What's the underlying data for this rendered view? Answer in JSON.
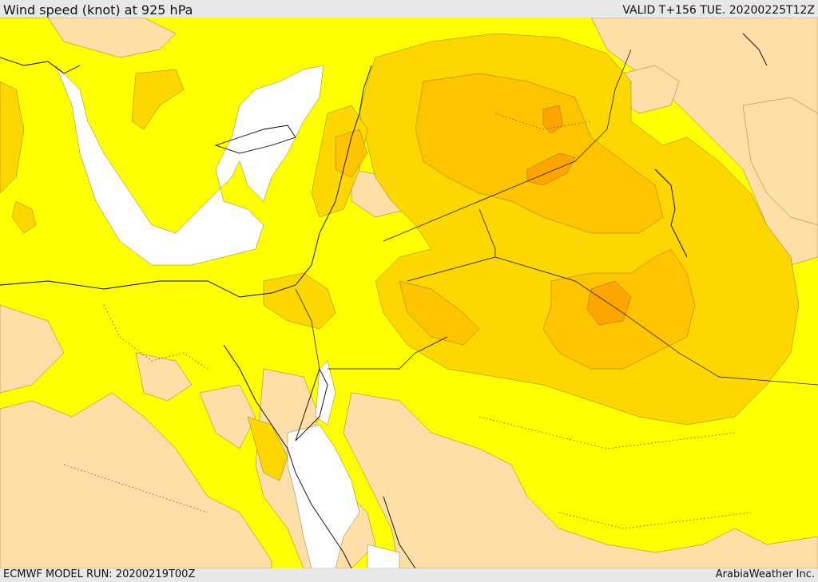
{
  "header": {
    "title": "Wind speed (knot) at 925 hPa",
    "valid": "VALID T+156 TUE. 20200225T12Z"
  },
  "footer": {
    "model_run": "ECMWF MODEL RUN: 20200219T00Z",
    "credit": "ArabiaWeather Inc."
  },
  "map": {
    "levels": [
      "white",
      "yellow",
      "tan",
      "gold",
      "light-orange",
      "orange"
    ],
    "colors": {
      "calm": "#ffffff",
      "yellow": "#ffff00",
      "tan": "#ffdfa8",
      "gold": "#ffd700",
      "light_orange": "#ffc400",
      "orange": "#ffa500",
      "coastline": "#000000"
    }
  }
}
